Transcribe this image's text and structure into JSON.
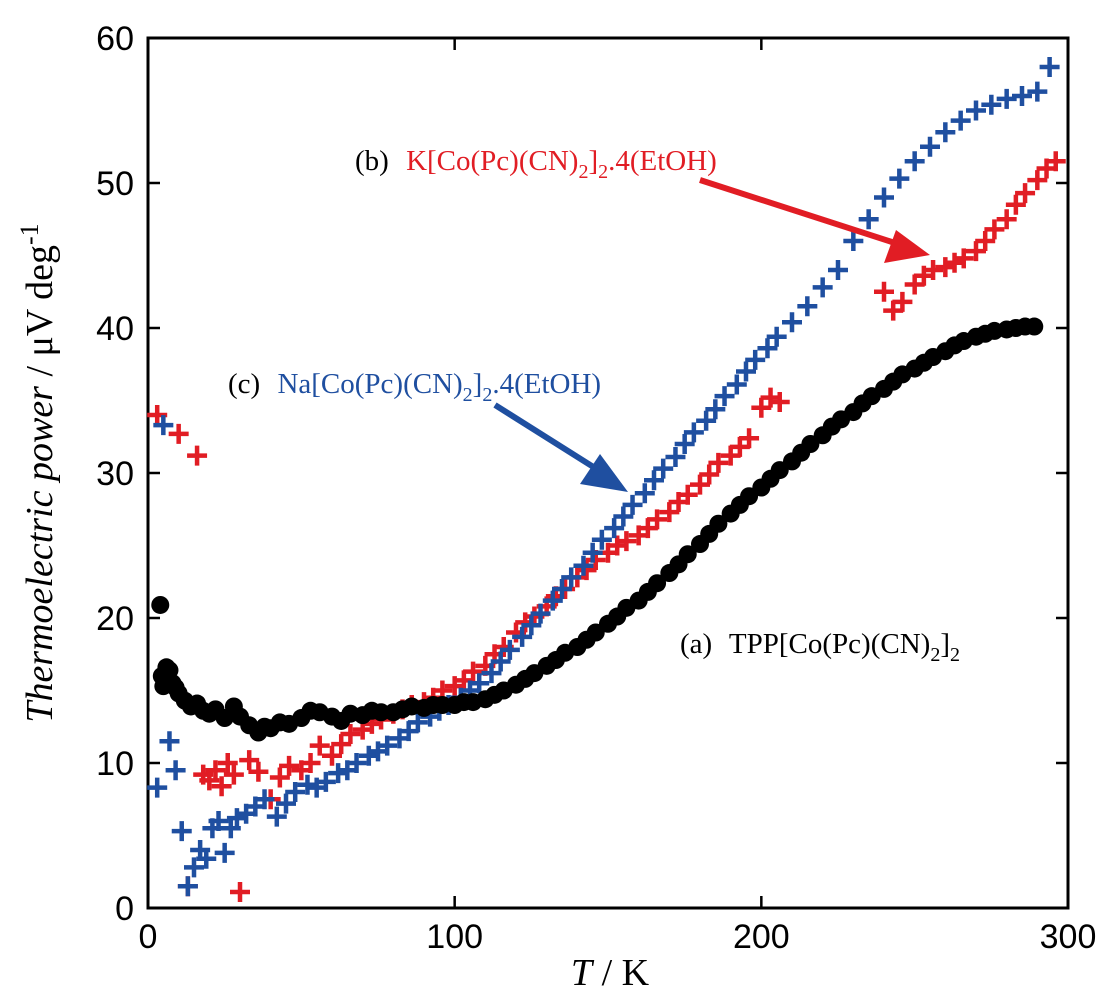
{
  "chart_data": {
    "type": "scatter",
    "xlabel_italic": "T",
    "xlabel_rest": " / K",
    "ylabel_italic": "Thermoelectric power",
    "ylabel_rest": " / μV deg",
    "ylabel_sup": "-1",
    "xlim": [
      0,
      300
    ],
    "ylim": [
      0,
      60
    ],
    "xticks": [
      0,
      100,
      200,
      300
    ],
    "yticks": [
      0,
      10,
      20,
      30,
      40,
      50,
      60
    ],
    "colors": {
      "a": "#000000",
      "b": "#e11d24",
      "c": "#1f4fa0"
    },
    "annotations": {
      "a": {
        "tag": "(a)",
        "base": "TPP[Co(Pc)(CN)",
        "sub": "2",
        "tail": "]",
        "sub2": "2"
      },
      "b": {
        "tag": "(b)",
        "base": "K[Co(Pc)(CN)",
        "sub": "2",
        "tail": "]",
        "sub2": "2",
        "suffix": ".4(EtOH)"
      },
      "c": {
        "tag": "(c)",
        "base": "Na[Co(Pc)(CN)",
        "sub": "2",
        "tail": "]",
        "sub2": "2",
        "suffix": ".4(EtOH)"
      }
    },
    "series": [
      {
        "name": "(a) TPP[Co(Pc)(CN)2]2",
        "marker": "circle",
        "x": [
          4,
          4.5,
          5,
          6,
          7,
          8,
          9,
          10,
          12,
          14,
          16,
          18,
          20,
          22,
          25,
          28,
          30,
          33,
          36,
          38,
          40,
          43,
          46,
          50,
          53,
          56,
          60,
          63,
          66,
          70,
          73,
          76,
          80,
          83,
          86,
          90,
          93,
          96,
          100,
          103,
          106,
          110,
          113,
          116,
          120,
          123,
          126,
          130,
          133,
          136,
          140,
          143,
          146,
          150,
          153,
          156,
          160,
          163,
          166,
          170,
          173,
          176,
          180,
          183,
          186,
          190,
          193,
          196,
          200,
          203,
          206,
          210,
          213,
          216,
          220,
          223,
          226,
          230,
          233,
          236,
          240,
          243,
          246,
          250,
          253,
          256,
          260,
          263,
          266,
          270,
          273,
          276,
          280,
          283,
          286,
          289
        ],
        "y": [
          20.9,
          16,
          15.3,
          16.6,
          16.4,
          15.5,
          15.2,
          14.8,
          14.3,
          13.9,
          14.1,
          13.6,
          13.4,
          13.7,
          13.1,
          13.9,
          13.2,
          12.6,
          12.1,
          12.5,
          12.4,
          12.8,
          12.7,
          13.1,
          13.6,
          13.5,
          13.2,
          12.9,
          13.4,
          13.3,
          13.6,
          13.5,
          13.5,
          13.7,
          13.9,
          13.8,
          14.0,
          14.0,
          14.0,
          14.2,
          14.2,
          14.4,
          14.7,
          15.0,
          15.4,
          15.8,
          16.2,
          16.7,
          17.1,
          17.6,
          18.0,
          18.5,
          19.0,
          19.6,
          20.1,
          20.7,
          21.2,
          21.8,
          22.4,
          23.1,
          23.7,
          24.4,
          25.1,
          25.8,
          26.5,
          27.2,
          27.8,
          28.4,
          29.0,
          29.6,
          30.2,
          30.8,
          31.4,
          32.0,
          32.6,
          33.2,
          33.7,
          34.2,
          34.8,
          35.3,
          35.8,
          36.3,
          36.8,
          37.2,
          37.6,
          38.0,
          38.4,
          38.8,
          39.1,
          39.4,
          39.6,
          39.8,
          39.9,
          40.0,
          40.1,
          40.1
        ]
      },
      {
        "name": "(b) K[Co(Pc)(CN)2]2.4(EtOH)",
        "marker": "plus",
        "x": [
          3,
          10,
          13,
          16,
          18,
          20,
          22,
          24,
          26,
          28,
          30,
          33,
          36,
          40,
          43,
          46,
          50,
          53,
          56,
          60,
          63,
          66,
          70,
          73,
          76,
          80,
          83,
          86,
          90,
          93,
          96,
          100,
          103,
          106,
          110,
          113,
          116,
          120,
          123,
          126,
          130,
          133,
          136,
          140,
          143,
          146,
          150,
          153,
          156,
          160,
          163,
          166,
          170,
          173,
          176,
          180,
          183,
          186,
          190,
          193,
          196,
          200,
          203,
          206,
          240,
          243,
          246,
          250,
          253,
          256,
          260,
          263,
          266,
          270,
          273,
          276,
          280,
          283,
          286,
          290,
          293,
          296
        ],
        "y": [
          34,
          32.7,
          1.5,
          31.2,
          9.2,
          8.8,
          9.5,
          8.4,
          10,
          9.2,
          1.1,
          10.2,
          9.4,
          7.5,
          9.0,
          9.8,
          9.5,
          10.0,
          11.2,
          10.5,
          11.3,
          12.0,
          12.3,
          12.7,
          13.0,
          13.4,
          13.7,
          14.0,
          14.2,
          14.5,
          15.0,
          15.3,
          15.7,
          16.3,
          16.7,
          17.5,
          18.0,
          19.0,
          19.7,
          20.1,
          20.8,
          21.5,
          22.0,
          22.8,
          23.3,
          24.0,
          24.5,
          25.0,
          25.3,
          25.7,
          26.2,
          26.8,
          27.3,
          28.0,
          28.5,
          29.2,
          29.9,
          30.7,
          31.2,
          31.8,
          32.4,
          34.5,
          35.2,
          34.9,
          42.5,
          41.2,
          41.8,
          43.0,
          43.6,
          44.0,
          44.2,
          44.5,
          44.8,
          45.3,
          46.0,
          46.8,
          47.5,
          48.5,
          49.3,
          50.2,
          51.0,
          51.5
        ]
      },
      {
        "name": "(c) Na[Co(Pc)(CN)2]2.4(EtOH)",
        "marker": "plus",
        "x": [
          3,
          5,
          7,
          9,
          11,
          13,
          15,
          17,
          19,
          21,
          23,
          25,
          27,
          29,
          32,
          35,
          38,
          42,
          45,
          48,
          52,
          55,
          58,
          62,
          65,
          68,
          72,
          75,
          78,
          82,
          85,
          88,
          92,
          95,
          98,
          102,
          105,
          108,
          112,
          115,
          118,
          122,
          125,
          128,
          132,
          135,
          138,
          142,
          145,
          148,
          152,
          155,
          158,
          162,
          165,
          168,
          172,
          175,
          178,
          182,
          185,
          188,
          192,
          195,
          198,
          202,
          205,
          210,
          215,
          220,
          225,
          230,
          235,
          240,
          245,
          250,
          255,
          260,
          265,
          270,
          275,
          280,
          285,
          290,
          294
        ],
        "y": [
          8.3,
          33.3,
          11.5,
          9.5,
          5.3,
          1.5,
          2.8,
          4.0,
          3.4,
          5.5,
          6.0,
          3.8,
          5.5,
          6.2,
          6.5,
          7.0,
          7.5,
          6.3,
          7.2,
          8.0,
          8.5,
          8.3,
          8.7,
          9.3,
          9.5,
          10.0,
          10.5,
          10.8,
          11.2,
          11.7,
          12.2,
          12.8,
          13.2,
          13.6,
          14.0,
          14.5,
          15.0,
          15.5,
          16.2,
          17.0,
          17.8,
          18.7,
          19.5,
          20.3,
          21.2,
          22.0,
          22.8,
          23.6,
          24.5,
          25.4,
          26.2,
          27.0,
          27.8,
          28.6,
          29.5,
          30.3,
          31.1,
          32.0,
          32.8,
          33.6,
          34.4,
          35.3,
          36.1,
          37.0,
          37.8,
          38.6,
          39.4,
          40.4,
          41.5,
          42.8,
          44.0,
          46.0,
          47.5,
          49.0,
          50.3,
          51.5,
          52.5,
          53.5,
          54.3,
          55.0,
          55.4,
          55.8,
          56.0,
          56.3,
          58.0
        ]
      }
    ]
  }
}
